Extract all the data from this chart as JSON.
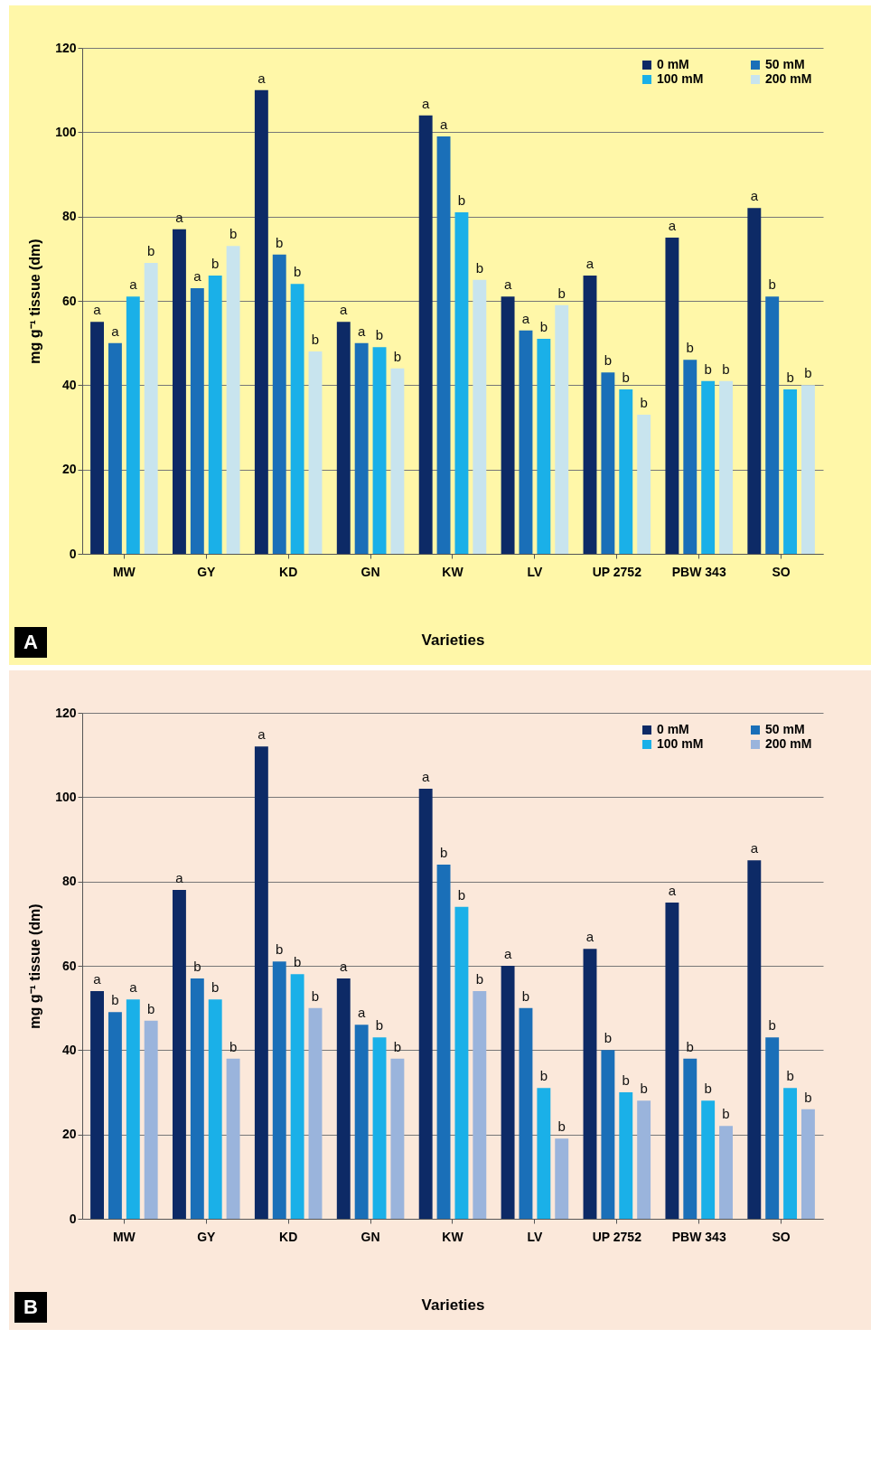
{
  "chart_data": [
    {
      "type": "bar",
      "ylabel": "mg g⁻¹ tissue (dm)",
      "xlabel": "Varieties",
      "categories": [
        "MW",
        "GY",
        "KD",
        "GN",
        "KW",
        "LV",
        "UP 2752",
        "PBW 343",
        "SO"
      ],
      "series": [
        {
          "name": "0 mM",
          "color": "#0d2a66",
          "values": [
            55,
            77,
            110,
            55,
            104,
            61,
            66,
            75,
            82
          ],
          "value_labels": [
            "a",
            "a",
            "a",
            "a",
            "a",
            "a",
            "a",
            "a",
            "a"
          ]
        },
        {
          "name": "50 mM",
          "color": "#1a6fb8",
          "values": [
            50,
            63,
            71,
            50,
            99,
            53,
            43,
            46,
            61
          ],
          "value_labels": [
            "a",
            "a",
            "b",
            "a",
            "a",
            "a",
            "b",
            "b",
            "b"
          ]
        },
        {
          "name": "100 mM",
          "color": "#1ab0e8",
          "values": [
            61,
            66,
            64,
            49,
            81,
            51,
            39,
            41,
            39
          ],
          "value_labels": [
            "a",
            "b",
            "b",
            "b",
            "b",
            "b",
            "b",
            "b",
            "b"
          ]
        },
        {
          "name": "200 mM",
          "color": "#c8e4ee",
          "values": [
            69,
            73,
            48,
            44,
            65,
            59,
            33,
            41,
            40
          ],
          "value_labels": [
            "b",
            "b",
            "b",
            "b",
            "b",
            "b",
            "b",
            "b",
            "b"
          ]
        }
      ],
      "ylim": [
        0,
        120
      ],
      "yticks": [
        0,
        20,
        40,
        60,
        80,
        100,
        120
      ],
      "grid": "y",
      "legend": "top right",
      "annotations": [
        "A"
      ]
    },
    {
      "type": "bar",
      "ylabel": "mg g⁻¹ tissue (dm)",
      "xlabel": "Varieties",
      "categories": [
        "MW",
        "GY",
        "KD",
        "GN",
        "KW",
        "LV",
        "UP 2752",
        "PBW 343",
        "SO"
      ],
      "series": [
        {
          "name": "0 mM",
          "color": "#0d2a66",
          "values": [
            54,
            78,
            112,
            57,
            102,
            60,
            64,
            75,
            85
          ],
          "value_labels": [
            "a",
            "a",
            "a",
            "a",
            "a",
            "a",
            "a",
            "a",
            "a"
          ]
        },
        {
          "name": "50 mM",
          "color": "#1a6fb8",
          "values": [
            49,
            57,
            61,
            46,
            84,
            50,
            40,
            38,
            43
          ],
          "value_labels": [
            "b",
            "b",
            "b",
            "a",
            "b",
            "b",
            "b",
            "b",
            "b"
          ]
        },
        {
          "name": "100 mM",
          "color": "#1ab0e8",
          "values": [
            52,
            52,
            58,
            43,
            74,
            31,
            30,
            28,
            31
          ],
          "value_labels": [
            "a",
            "b",
            "b",
            "b",
            "b",
            "b",
            "b",
            "b",
            "b"
          ]
        },
        {
          "name": "200 mM",
          "color": "#9ab4dc",
          "values": [
            47,
            38,
            50,
            38,
            54,
            19,
            28,
            22,
            26
          ],
          "value_labels": [
            "b",
            "b",
            "b",
            "b",
            "b",
            "b",
            "b",
            "b",
            "b"
          ]
        }
      ],
      "ylim": [
        0,
        120
      ],
      "yticks": [
        0,
        20,
        40,
        60,
        80,
        100,
        120
      ],
      "grid": "y",
      "legend": "top right",
      "annotations": [
        "B"
      ]
    }
  ]
}
